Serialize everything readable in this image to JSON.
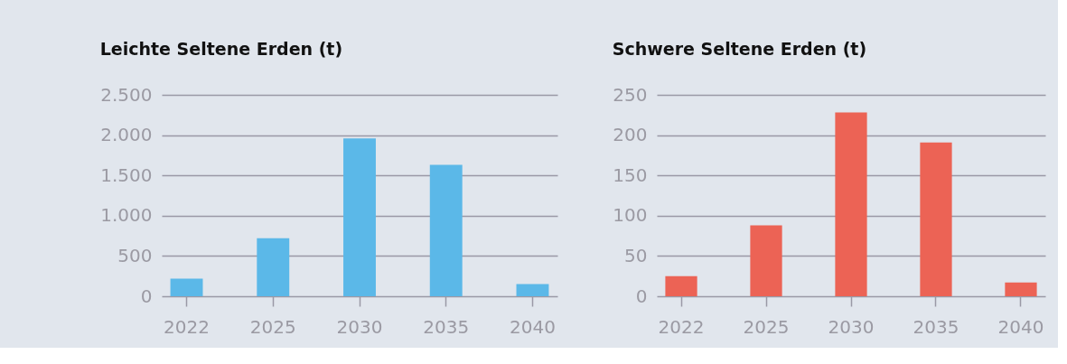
{
  "chart_data": [
    {
      "type": "bar",
      "title": "Leichte Seltene Erden (t)",
      "categories": [
        "2022",
        "2025",
        "2030",
        "2035",
        "2040"
      ],
      "values": [
        220,
        720,
        1960,
        1630,
        150
      ],
      "color": "#5bb8e8",
      "ylim": [
        0,
        2500
      ],
      "yticks": [
        0,
        500,
        {
          "value": 1000,
          "label": "1.000"
        },
        {
          "value": 1500,
          "label": "1.500"
        },
        {
          "value": 2000,
          "label": "2.000"
        },
        {
          "value": 2500,
          "label": "2.500"
        }
      ],
      "grid": "y"
    },
    {
      "type": "bar",
      "title": "Schwere Seltene Erden (t)",
      "categories": [
        "2022",
        "2025",
        "2030",
        "2035",
        "2040"
      ],
      "values": [
        25,
        88,
        228,
        191,
        17
      ],
      "color": "#ec6355",
      "ylim": [
        0,
        250
      ],
      "yticks": [
        0,
        50,
        100,
        150,
        200,
        250
      ],
      "grid": "y"
    }
  ]
}
